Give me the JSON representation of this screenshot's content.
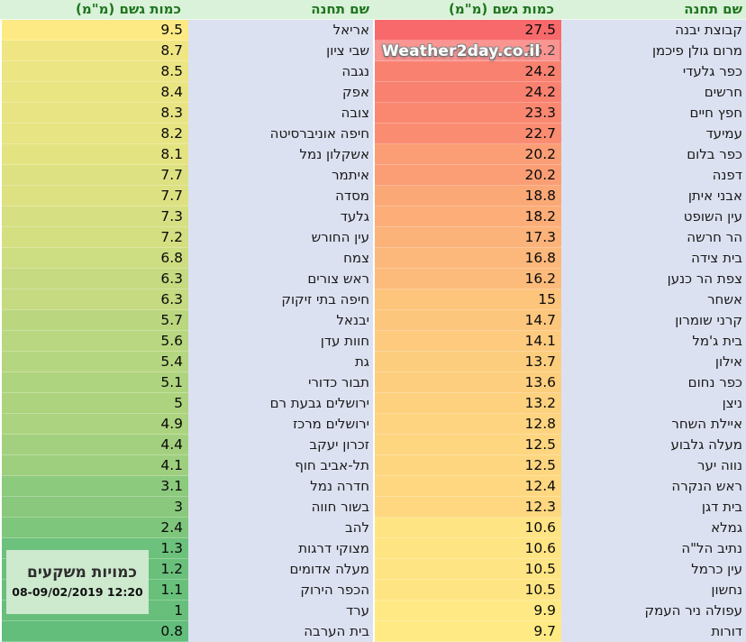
{
  "watermark": {
    "text": "Weather2day.co.il"
  },
  "info_box": {
    "title": "כמויות משקעים",
    "timestamp": "08-09/02/2019 12:20"
  },
  "headers": {
    "station": "שם תחנה",
    "amount": "כמות גשם (מ\"מ)"
  },
  "colors": {
    "header_bg": "#d9f2d9",
    "header_text": "#1f741f",
    "station_column_bg": "#dce1f1",
    "station_text": "#1a1a1a",
    "value_text": "#0a0a0a",
    "grid_line": "#ffffff",
    "info_box_bg": "#cde9ce",
    "watermark_text": "#ffffff"
  },
  "chart_data": {
    "type": "table",
    "title": "כמויות משקעים",
    "timestamp": "08-09/02/2019 12:20",
    "columns": [
      "שם תחנה",
      "כמות גשם (מ\"מ)"
    ],
    "color_scale": {
      "min_value": 0.8,
      "mid_value": 9.6,
      "max_value": 27.5,
      "min_color": "#63BE7B",
      "mid_color": "#FFEB84",
      "max_color": "#F8696B"
    },
    "groups": [
      {
        "rows": [
          {
            "station": "קבוצת יבנה",
            "amount": 27.5
          },
          {
            "station": "מרום גולן פיכמן",
            "amount": 26.2
          },
          {
            "station": "כפר גלעדי",
            "amount": 24.2
          },
          {
            "station": "חרשים",
            "amount": 24.2
          },
          {
            "station": "חפץ חיים",
            "amount": 23.3
          },
          {
            "station": "עמיעד",
            "amount": 22.7
          },
          {
            "station": "כפר בלום",
            "amount": 20.2
          },
          {
            "station": "דפנה",
            "amount": 20.2
          },
          {
            "station": "אבני איתן",
            "amount": 18.8
          },
          {
            "station": "עין השופט",
            "amount": 18.2
          },
          {
            "station": "הר חרשה",
            "amount": 17.3
          },
          {
            "station": "בית צידה",
            "amount": 16.8
          },
          {
            "station": "צפת הר כנען",
            "amount": 16.2
          },
          {
            "station": "אשחר",
            "amount": 15
          },
          {
            "station": "קרני שומרון",
            "amount": 14.7
          },
          {
            "station": "בית ג'מל",
            "amount": 14.1
          },
          {
            "station": "אילון",
            "amount": 13.7
          },
          {
            "station": "כפר נחום",
            "amount": 13.6
          },
          {
            "station": "ניצן",
            "amount": 13.2
          },
          {
            "station": "איילת השחר",
            "amount": 12.8
          },
          {
            "station": "מעלה גלבוע",
            "amount": 12.5
          },
          {
            "station": "נווה יער",
            "amount": 12.5
          },
          {
            "station": "ראש הנקרה",
            "amount": 12.4
          },
          {
            "station": "בית דגן",
            "amount": 12.3
          },
          {
            "station": "גמלא",
            "amount": 10.6
          },
          {
            "station": "נתיב הל\"ה",
            "amount": 10.6
          },
          {
            "station": "עין כרמל",
            "amount": 10.5
          },
          {
            "station": "נחשון",
            "amount": 10.5
          },
          {
            "station": "עפולה ניר העמק",
            "amount": 9.9
          },
          {
            "station": "דורות",
            "amount": 9.7
          }
        ]
      },
      {
        "rows": [
          {
            "station": "אריאל",
            "amount": 9.5
          },
          {
            "station": "שבי ציון",
            "amount": 8.7
          },
          {
            "station": "נגבה",
            "amount": 8.5
          },
          {
            "station": "אפק",
            "amount": 8.4
          },
          {
            "station": "צובה",
            "amount": 8.3
          },
          {
            "station": "חיפה אוניברסיטה",
            "amount": 8.2
          },
          {
            "station": "אשקלון נמל",
            "amount": 8.1
          },
          {
            "station": "איתמר",
            "amount": 7.7
          },
          {
            "station": "מסדה",
            "amount": 7.7
          },
          {
            "station": "גלעד",
            "amount": 7.3
          },
          {
            "station": "עין החורש",
            "amount": 7.2
          },
          {
            "station": "צמח",
            "amount": 6.8
          },
          {
            "station": "ראש צורים",
            "amount": 6.3
          },
          {
            "station": "חיפה בתי זיקוק",
            "amount": 6.3
          },
          {
            "station": "יבנאל",
            "amount": 5.7
          },
          {
            "station": "חוות עדן",
            "amount": 5.6
          },
          {
            "station": "גת",
            "amount": 5.4
          },
          {
            "station": "תבור כדורי",
            "amount": 5.1
          },
          {
            "station": "ירושלים גבעת רם",
            "amount": 5
          },
          {
            "station": "ירושלים מרכז",
            "amount": 4.9
          },
          {
            "station": "זכרון יעקב",
            "amount": 4.4
          },
          {
            "station": "תל-אביב חוף",
            "amount": 4.1
          },
          {
            "station": "חדרה נמל",
            "amount": 3.1
          },
          {
            "station": "בשור חווה",
            "amount": 3
          },
          {
            "station": "להב",
            "amount": 2.4
          },
          {
            "station": "מצוקי דרגות",
            "amount": 1.3
          },
          {
            "station": "מעלה אדומים",
            "amount": 1.2
          },
          {
            "station": "הכפר הירוק",
            "amount": 1.1
          },
          {
            "station": "ערד",
            "amount": 1
          },
          {
            "station": "בית הערבה",
            "amount": 0.8
          }
        ]
      }
    ]
  }
}
